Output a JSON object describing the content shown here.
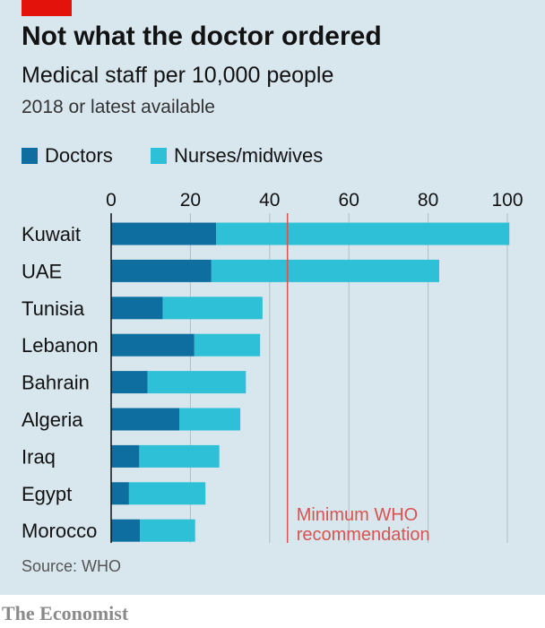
{
  "header": {
    "title": "Not what the doctor ordered",
    "subtitle": "Medical staff per 10,000 people",
    "note": "2018 or latest available"
  },
  "colors": {
    "background": "#d8e6ee",
    "accent": "#e3120b",
    "doctors": "#0e6ea0",
    "nurses": "#2ec0d6",
    "gridline": "#b0bec7",
    "reference_line": "#d9534f"
  },
  "legend": {
    "items": [
      {
        "label": "Doctors",
        "color": "#0e6ea0"
      },
      {
        "label": "Nurses/midwives",
        "color": "#2ec0d6"
      }
    ]
  },
  "annotation": {
    "line1": "Minimum WHO",
    "line2": "recommendation"
  },
  "footer": {
    "source": "Source: WHO",
    "brand": "The Economist"
  },
  "chart_data": {
    "type": "bar",
    "orientation": "horizontal",
    "stacked": true,
    "title": "Not what the doctor ordered",
    "subtitle": "Medical staff per 10,000 people",
    "categories": [
      "Kuwait",
      "UAE",
      "Tunisia",
      "Lebanon",
      "Bahrain",
      "Algeria",
      "Iraq",
      "Egypt",
      "Morocco"
    ],
    "series": [
      {
        "name": "Doctors",
        "values": [
          26.5,
          25.3,
          13.0,
          21.0,
          9.2,
          17.2,
          7.1,
          4.5,
          7.3
        ]
      },
      {
        "name": "Nurses/midwives",
        "values": [
          74.0,
          57.5,
          25.2,
          16.6,
          24.8,
          15.4,
          20.2,
          19.3,
          13.9
        ]
      }
    ],
    "xlim": [
      0,
      100
    ],
    "xticks": [
      0,
      20,
      40,
      60,
      80,
      100
    ],
    "grid": true,
    "legend_position": "top-left",
    "reference_line": {
      "value": 44.5,
      "label": "Minimum WHO recommendation"
    }
  }
}
